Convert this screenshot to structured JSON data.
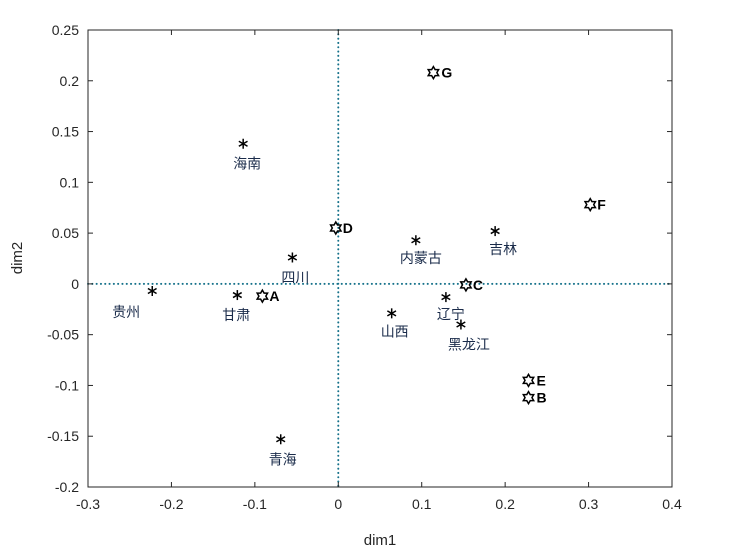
{
  "figure": {
    "background": "#ffffff"
  },
  "chart_data": {
    "type": "scatter",
    "title": "",
    "xlabel": "dim1",
    "ylabel": "dim2",
    "xlim": [
      -0.3,
      0.4
    ],
    "ylim": [
      -0.2,
      0.25
    ],
    "grid": false,
    "axis_color": "#262626",
    "xticks": {
      "values": [
        -0.3,
        -0.2,
        -0.1,
        0,
        0.1,
        0.2,
        0.3,
        0.4
      ],
      "labels": [
        "-0.3",
        "-0.2",
        "-0.1",
        "0",
        "0.1",
        "0.2",
        "0.3",
        "0.4"
      ]
    },
    "yticks": {
      "values": [
        -0.2,
        -0.15,
        -0.1,
        -0.05,
        0,
        0.05,
        0.1,
        0.15,
        0.2,
        0.25
      ],
      "labels": [
        "-0.2",
        "-0.15",
        "-0.1",
        "-0.05",
        "0",
        "0.05",
        "0.1",
        "0.15",
        "0.2",
        "0.25"
      ]
    },
    "reference_lines": {
      "x_zero": true,
      "y_zero": true,
      "style": "dotted",
      "color": "#15718a"
    },
    "series": [
      {
        "name": "provinces",
        "marker": "asterisk",
        "marker_color": "#000000",
        "label_color": "#1a2b4a",
        "label_bold": false,
        "points": [
          {
            "label": "贵州",
            "x": -0.223,
            "y": -0.007,
            "label_dx": -40,
            "label_dy": 26
          },
          {
            "label": "甘肃",
            "x": -0.121,
            "y": -0.011,
            "label_dx": -15,
            "label_dy": 25
          },
          {
            "label": "海南",
            "x": -0.114,
            "y": 0.138,
            "label_dx": -10,
            "label_dy": 25
          },
          {
            "label": "四川",
            "x": -0.055,
            "y": 0.026,
            "label_dx": -11,
            "label_dy": 25
          },
          {
            "label": "青海",
            "x": -0.069,
            "y": -0.153,
            "label_dx": -12,
            "label_dy": 25
          },
          {
            "label": "内蒙古",
            "x": 0.093,
            "y": 0.043,
            "label_dx": -16,
            "label_dy": 23
          },
          {
            "label": "吉林",
            "x": 0.188,
            "y": 0.052,
            "label_dx": -6,
            "label_dy": 23
          },
          {
            "label": "山西",
            "x": 0.064,
            "y": -0.029,
            "label_dx": -11,
            "label_dy": 23
          },
          {
            "label": "辽宁",
            "x": 0.129,
            "y": -0.013,
            "label_dx": -9,
            "label_dy": 22
          },
          {
            "label": "黑龙江",
            "x": 0.147,
            "y": -0.04,
            "label_dx": -13,
            "label_dy": 25
          }
        ]
      },
      {
        "name": "letter-points",
        "marker": "hexagram",
        "marker_color": "#000000",
        "label_color": "#000000",
        "label_bold": true,
        "points": [
          {
            "label": "A",
            "x": -0.091,
            "y": -0.012,
            "label_dx": 7,
            "label_dy": 5
          },
          {
            "label": "B",
            "x": 0.228,
            "y": -0.112,
            "label_dx": 8,
            "label_dy": 5
          },
          {
            "label": "C",
            "x": 0.153,
            "y": -0.001,
            "label_dx": 7,
            "label_dy": 5
          },
          {
            "label": "D",
            "x": -0.003,
            "y": 0.055,
            "label_dx": 7,
            "label_dy": 5
          },
          {
            "label": "E",
            "x": 0.228,
            "y": -0.095,
            "label_dx": 8,
            "label_dy": 5
          },
          {
            "label": "F",
            "x": 0.302,
            "y": 0.078,
            "label_dx": 7,
            "label_dy": 5
          },
          {
            "label": "G",
            "x": 0.114,
            "y": 0.208,
            "label_dx": 8,
            "label_dy": 5
          }
        ]
      }
    ]
  }
}
